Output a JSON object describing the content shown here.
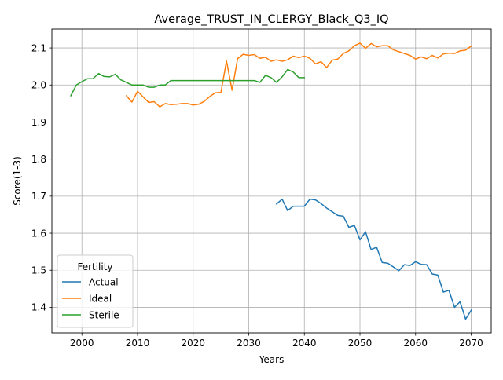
{
  "chart_data": {
    "type": "line",
    "title": "Average_TRUST_IN_CLERGY_Black_Q3_IQ",
    "xlabel": "Years",
    "ylabel": "Score(1-3)",
    "xlim": [
      1994.6,
      2073.6
    ],
    "ylim": [
      1.331,
      2.151
    ],
    "xticks": [
      2000,
      2010,
      2020,
      2030,
      2040,
      2050,
      2060,
      2070
    ],
    "yticks": [
      1.4,
      1.5,
      1.6,
      1.7,
      1.8,
      1.9,
      2.0,
      2.1
    ],
    "ytick_labels": [
      "1.4",
      "1.5",
      "1.6",
      "1.7",
      "1.8",
      "1.9",
      "2.0",
      "2.1"
    ],
    "grid": true,
    "legend": {
      "title": "Fertility",
      "placement": "lower-left"
    },
    "series": [
      {
        "name": "Actual",
        "color": "#1f77b4",
        "x": [
          2035,
          2036,
          2037,
          2038,
          2039,
          2040,
          2041,
          2042,
          2043,
          2044,
          2045,
          2046,
          2047,
          2048,
          2049,
          2050,
          2051,
          2052,
          2053,
          2054,
          2055,
          2056,
          2057,
          2058,
          2059,
          2060,
          2061,
          2062,
          2063,
          2064,
          2065,
          2066,
          2067,
          2068,
          2069,
          2070
        ],
        "y": [
          1.679,
          1.692,
          1.661,
          1.673,
          1.673,
          1.673,
          1.692,
          1.69,
          1.68,
          1.668,
          1.658,
          1.648,
          1.646,
          1.616,
          1.621,
          1.582,
          1.604,
          1.556,
          1.562,
          1.521,
          1.519,
          1.509,
          1.499,
          1.515,
          1.513,
          1.523,
          1.516,
          1.515,
          1.49,
          1.487,
          1.441,
          1.446,
          1.4,
          1.415,
          1.368,
          1.392
        ]
      },
      {
        "name": "Ideal",
        "color": "#ff7f0e",
        "x": [
          2008,
          2009,
          2010,
          2011,
          2012,
          2013,
          2014,
          2015,
          2016,
          2017,
          2018,
          2019,
          2020,
          2021,
          2022,
          2023,
          2024,
          2025,
          2026,
          2027,
          2028,
          2029,
          2030,
          2031,
          2032,
          2033,
          2034,
          2035,
          2036,
          2037,
          2038,
          2039,
          2040,
          2041,
          2042,
          2043,
          2044,
          2045,
          2046,
          2047,
          2048,
          2049,
          2050,
          2051,
          2052,
          2053,
          2054,
          2055,
          2056,
          2057,
          2058,
          2059,
          2060,
          2061,
          2062,
          2063,
          2064,
          2065,
          2066,
          2067,
          2068,
          2069,
          2070
        ],
        "y": [
          1.971,
          1.954,
          1.983,
          1.968,
          1.953,
          1.955,
          1.941,
          1.95,
          1.947,
          1.948,
          1.95,
          1.95,
          1.946,
          1.948,
          1.956,
          1.969,
          1.979,
          1.98,
          2.065,
          1.986,
          2.071,
          2.083,
          2.08,
          2.082,
          2.072,
          2.075,
          2.064,
          2.068,
          2.064,
          2.068,
          2.078,
          2.074,
          2.078,
          2.072,
          2.057,
          2.063,
          2.047,
          2.067,
          2.07,
          2.085,
          2.092,
          2.106,
          2.113,
          2.099,
          2.112,
          2.103,
          2.106,
          2.106,
          2.095,
          2.09,
          2.085,
          2.08,
          2.07,
          2.076,
          2.071,
          2.08,
          2.073,
          2.084,
          2.086,
          2.085,
          2.092,
          2.094,
          2.105
        ]
      },
      {
        "name": "Sterile",
        "color": "#2ca02c",
        "x": [
          1998,
          1999,
          2000,
          2001,
          2002,
          2003,
          2004,
          2005,
          2006,
          2007,
          2008,
          2009,
          2010,
          2011,
          2012,
          2013,
          2014,
          2015,
          2016,
          2017,
          2018,
          2019,
          2020,
          2021,
          2022,
          2023,
          2024,
          2025,
          2026,
          2027,
          2028,
          2029,
          2030,
          2031,
          2032,
          2033,
          2034,
          2035,
          2036,
          2037,
          2038,
          2039,
          2040
        ],
        "y": [
          1.971,
          2.0,
          2.009,
          2.017,
          2.017,
          2.031,
          2.023,
          2.022,
          2.029,
          2.014,
          2.007,
          2.0,
          2.0,
          2.0,
          1.994,
          1.994,
          2.0,
          2.0,
          2.012,
          2.012,
          2.012,
          2.012,
          2.012,
          2.012,
          2.012,
          2.012,
          2.012,
          2.012,
          2.012,
          2.012,
          2.012,
          2.012,
          2.012,
          2.012,
          2.007,
          2.026,
          2.02,
          2.007,
          2.022,
          2.042,
          2.035,
          2.02,
          2.02
        ]
      }
    ]
  }
}
